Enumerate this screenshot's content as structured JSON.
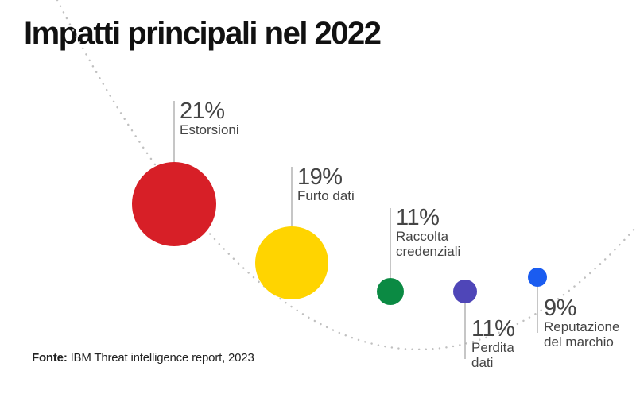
{
  "title": "Impatti principali nel 2022",
  "source": {
    "label": "Fonte:",
    "text": "IBM Threat intelligence report, 2023"
  },
  "chart_data": {
    "type": "bubble",
    "title": "Impatti principali nel 2022",
    "items": [
      {
        "category": [
          "Estorsioni"
        ],
        "value": 21,
        "label": "21%",
        "color": "#d71f27"
      },
      {
        "category": [
          "Furto dati"
        ],
        "value": 19,
        "label": "19%",
        "color": "#ffd400"
      },
      {
        "category": [
          "Raccolta",
          "credenziali"
        ],
        "value": 11,
        "label": "11%",
        "color": "#0b8a43"
      },
      {
        "category": [
          "Perdita",
          "dati"
        ],
        "value": 11,
        "label": "11%",
        "color": "#4f46b8"
      },
      {
        "category": [
          "Reputazione",
          "del marchio"
        ],
        "value": 9,
        "label": "9%",
        "color": "#1a5cf0"
      }
    ],
    "curve_color": "#c0c0c0",
    "leader_color": "#a8a8a8"
  }
}
